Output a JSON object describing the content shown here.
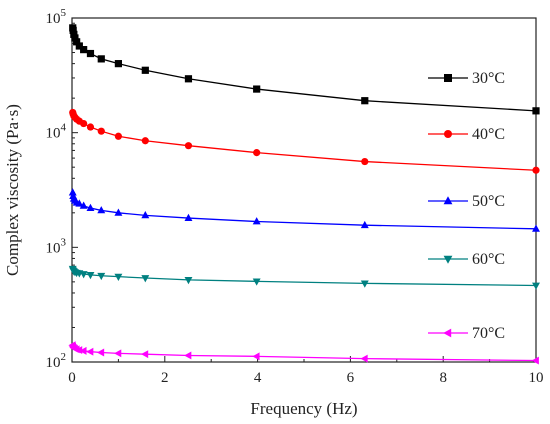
{
  "chart_data": {
    "type": "line",
    "xlabel": "Frequency (Hz)",
    "ylabel": "Complex viscosity (Pa·s)",
    "xlim": [
      0,
      10
    ],
    "ylim": [
      100,
      100000
    ],
    "yscale": "log",
    "xticks": [
      "0",
      "2",
      "4",
      "6",
      "8",
      "10"
    ],
    "yticks": [
      {
        "value": 100,
        "base": "10",
        "exp": "2"
      },
      {
        "value": 1000,
        "base": "10",
        "exp": "3"
      },
      {
        "value": 10000,
        "base": "10",
        "exp": "4"
      },
      {
        "value": 100000,
        "base": "10",
        "exp": "5"
      }
    ],
    "grid": false,
    "legend": "per-series labels at right",
    "x": [
      0.0158,
      0.0251,
      0.0398,
      0.0631,
      0.1,
      0.158,
      0.251,
      0.398,
      0.631,
      1.0,
      1.58,
      2.51,
      3.98,
      6.31,
      10.0
    ],
    "series": [
      {
        "name": "30°C",
        "color": "#000000",
        "marker": "square",
        "values": [
          82000,
          78000,
          72000,
          67000,
          62000,
          57000,
          53000,
          49000,
          44000,
          40000,
          35000,
          29500,
          24000,
          19000,
          15500
        ]
      },
      {
        "name": "40°C",
        "color": "#ff0000",
        "marker": "circle",
        "values": [
          15000,
          14500,
          14000,
          13600,
          13100,
          12600,
          12000,
          11200,
          10300,
          9300,
          8500,
          7700,
          6700,
          5600,
          4700
        ]
      },
      {
        "name": "50°C",
        "color": "#0000ff",
        "marker": "triangle-up",
        "values": [
          3000,
          2800,
          2650,
          2550,
          2450,
          2400,
          2300,
          2200,
          2100,
          2000,
          1900,
          1800,
          1680,
          1560,
          1450
        ]
      },
      {
        "name": "60°C",
        "color": "#008080",
        "marker": "triangle-down",
        "values": [
          650,
          630,
          620,
          610,
          600,
          595,
          585,
          575,
          565,
          555,
          540,
          520,
          505,
          485,
          465
        ]
      },
      {
        "name": "70°C",
        "color": "#ff00ff",
        "marker": "triangle-left",
        "values": [
          140,
          136,
          133,
          131,
          129,
          127,
          125,
          123,
          121,
          119,
          117,
          114,
          112,
          107,
          103
        ]
      }
    ]
  }
}
